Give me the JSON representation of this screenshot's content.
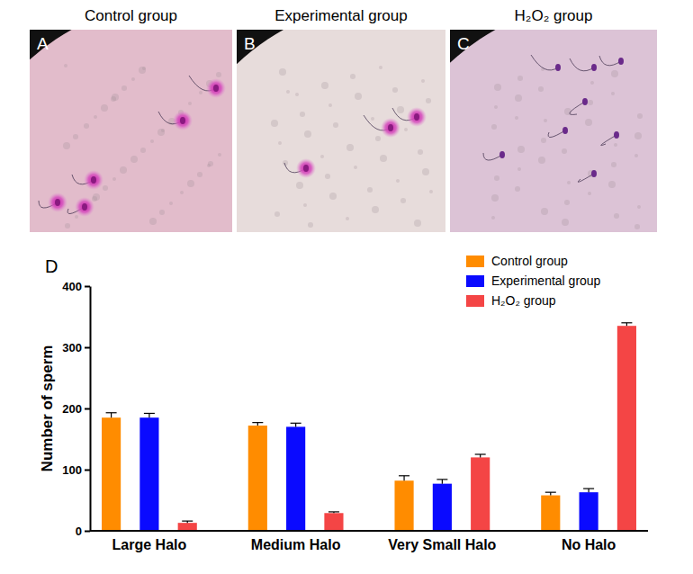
{
  "panels": [
    {
      "letter": "A",
      "title": "Control group"
    },
    {
      "letter": "B",
      "title": "Experimental group"
    },
    {
      "letter": "C",
      "title": "H₂O₂ group"
    }
  ],
  "chart_data": {
    "type": "bar",
    "label": "D",
    "y_label": "Number of sperm",
    "categories": [
      "Large Halo",
      "Medium Halo",
      "Very Small Halo",
      "No Halo"
    ],
    "series": [
      {
        "name": "Control group",
        "color": "#ff8c00",
        "values": [
          185,
          172,
          82,
          58
        ],
        "errors": [
          8,
          5,
          8,
          5
        ]
      },
      {
        "name": "Experimental group",
        "color": "#0a0aff",
        "values": [
          185,
          170,
          77,
          63
        ],
        "errors": [
          7,
          6,
          7,
          6
        ]
      },
      {
        "name": "H₂O₂ group",
        "color": "#f44545",
        "values": [
          13,
          29,
          120,
          335
        ],
        "errors": [
          3,
          2,
          5,
          5
        ]
      }
    ],
    "ylim": [
      0,
      400
    ],
    "yticks": [
      0,
      100,
      200,
      300,
      400
    ],
    "legend": "upper right",
    "grid": false
  }
}
